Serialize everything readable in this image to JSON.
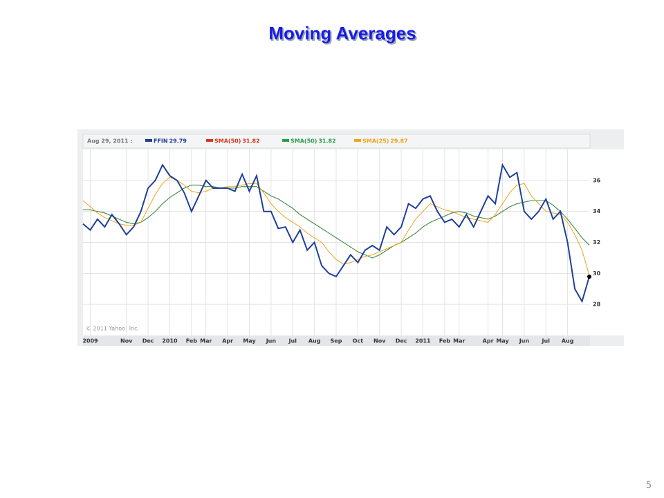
{
  "chart_data": {
    "type": "line",
    "title": "Moving Averages",
    "legend_date": "Aug 29, 2011 :",
    "credit": "© 2011 Yahoo! Inc.",
    "categories": [
      null,
      "2009",
      null,
      null,
      null,
      null,
      "Nov",
      null,
      null,
      "Dec",
      null,
      null,
      "2010",
      null,
      null,
      "Feb",
      null,
      "Mar",
      null,
      null,
      "Apr",
      null,
      null,
      "May",
      null,
      null,
      "Jun",
      null,
      null,
      "Jul",
      null,
      null,
      "Aug",
      null,
      null,
      "Sep",
      null,
      null,
      "Oct",
      null,
      null,
      "Nov",
      null,
      null,
      "Dec",
      null,
      null,
      "2011",
      null,
      null,
      "Feb",
      null,
      "Mar",
      null,
      null,
      null,
      "Apr",
      null,
      "May",
      null,
      null,
      "Jun",
      null,
      null,
      "Jul",
      null,
      null,
      "Aug",
      null,
      null,
      null
    ],
    "series": [
      {
        "name": "FFIN",
        "color": "#1f3f99",
        "values": [
          33.2,
          32.8,
          33.5,
          33.0,
          33.8,
          33.2,
          32.5,
          33.0,
          34.0,
          35.5,
          36.0,
          37.0,
          36.3,
          36.0,
          35.2,
          34.0,
          35.0,
          36.0,
          35.5,
          35.5,
          35.5,
          35.3,
          36.4,
          35.3,
          36.3,
          34.0,
          34.0,
          32.9,
          33.0,
          32.0,
          32.8,
          31.5,
          32.0,
          30.5,
          30.0,
          29.8,
          30.5,
          31.2,
          30.7,
          31.5,
          31.8,
          31.5,
          33.0,
          32.5,
          33.0,
          34.5,
          34.2,
          34.8,
          35.0,
          34.0,
          33.3,
          33.5,
          33.0,
          33.8,
          33.0,
          34.0,
          35.0,
          34.5,
          37.0,
          36.2,
          36.5,
          34.0,
          33.5,
          34.0,
          34.8,
          33.5,
          34.0,
          32.0,
          29.0,
          28.2,
          29.79
        ]
      },
      {
        "name": "SMA(50)",
        "color": "#d9361c",
        "values": [
          34.1,
          34.1,
          34.0,
          33.9,
          33.7,
          33.5,
          33.3,
          33.2,
          33.3,
          33.6,
          34.0,
          34.5,
          34.9,
          35.2,
          35.5,
          35.7,
          35.7,
          35.6,
          35.6,
          35.5,
          35.5,
          35.5,
          35.6,
          35.6,
          35.6,
          35.3,
          35.0,
          34.8,
          34.5,
          34.2,
          33.8,
          33.5,
          33.2,
          32.9,
          32.6,
          32.3,
          32.0,
          31.7,
          31.4,
          31.2,
          31.0,
          31.2,
          31.5,
          31.8,
          32.0,
          32.3,
          32.6,
          33.0,
          33.3,
          33.5,
          33.7,
          33.9,
          34.0,
          33.9,
          33.7,
          33.6,
          33.5,
          33.7,
          34.0,
          34.3,
          34.5,
          34.6,
          34.7,
          34.7,
          34.7,
          34.4,
          34.0,
          33.5,
          32.9,
          32.3,
          31.82
        ]
      },
      {
        "name": "SMA(50)",
        "color": "#2e9b4a",
        "values": [
          34.1,
          34.1,
          34.0,
          33.9,
          33.7,
          33.5,
          33.3,
          33.2,
          33.3,
          33.6,
          34.0,
          34.5,
          34.9,
          35.2,
          35.5,
          35.7,
          35.7,
          35.6,
          35.6,
          35.5,
          35.5,
          35.5,
          35.6,
          35.6,
          35.6,
          35.3,
          35.0,
          34.8,
          34.5,
          34.2,
          33.8,
          33.5,
          33.2,
          32.9,
          32.6,
          32.3,
          32.0,
          31.7,
          31.4,
          31.2,
          31.0,
          31.2,
          31.5,
          31.8,
          32.0,
          32.3,
          32.6,
          33.0,
          33.3,
          33.5,
          33.7,
          33.9,
          34.0,
          33.9,
          33.7,
          33.6,
          33.5,
          33.7,
          34.0,
          34.3,
          34.5,
          34.6,
          34.7,
          34.7,
          34.7,
          34.4,
          34.0,
          33.5,
          32.9,
          32.3,
          31.82
        ]
      },
      {
        "name": "SMA(25)",
        "color": "#f0a31c",
        "values": [
          34.7,
          34.3,
          33.9,
          33.6,
          33.4,
          33.2,
          33.1,
          33.1,
          33.3,
          34.2,
          35.1,
          35.8,
          36.2,
          36.0,
          35.7,
          35.3,
          35.2,
          35.3,
          35.5,
          35.5,
          35.6,
          35.6,
          35.7,
          35.8,
          35.8,
          35.2,
          34.5,
          34.0,
          33.6,
          33.3,
          33.0,
          32.6,
          32.3,
          32.0,
          31.4,
          30.9,
          30.6,
          30.7,
          30.9,
          31.1,
          31.2,
          31.4,
          31.6,
          31.8,
          32.0,
          32.8,
          33.5,
          34.0,
          34.5,
          34.3,
          34.1,
          34.0,
          33.8,
          33.6,
          33.5,
          33.4,
          33.3,
          33.8,
          34.5,
          35.2,
          35.7,
          35.8,
          35.0,
          34.5,
          34.0,
          33.9,
          33.8,
          33.3,
          32.5,
          31.5,
          29.87
        ]
      }
    ],
    "ylim": [
      26,
      38
    ],
    "yticks": [
      28,
      30,
      32,
      34,
      36
    ],
    "grid": true
  },
  "page_number": 5
}
